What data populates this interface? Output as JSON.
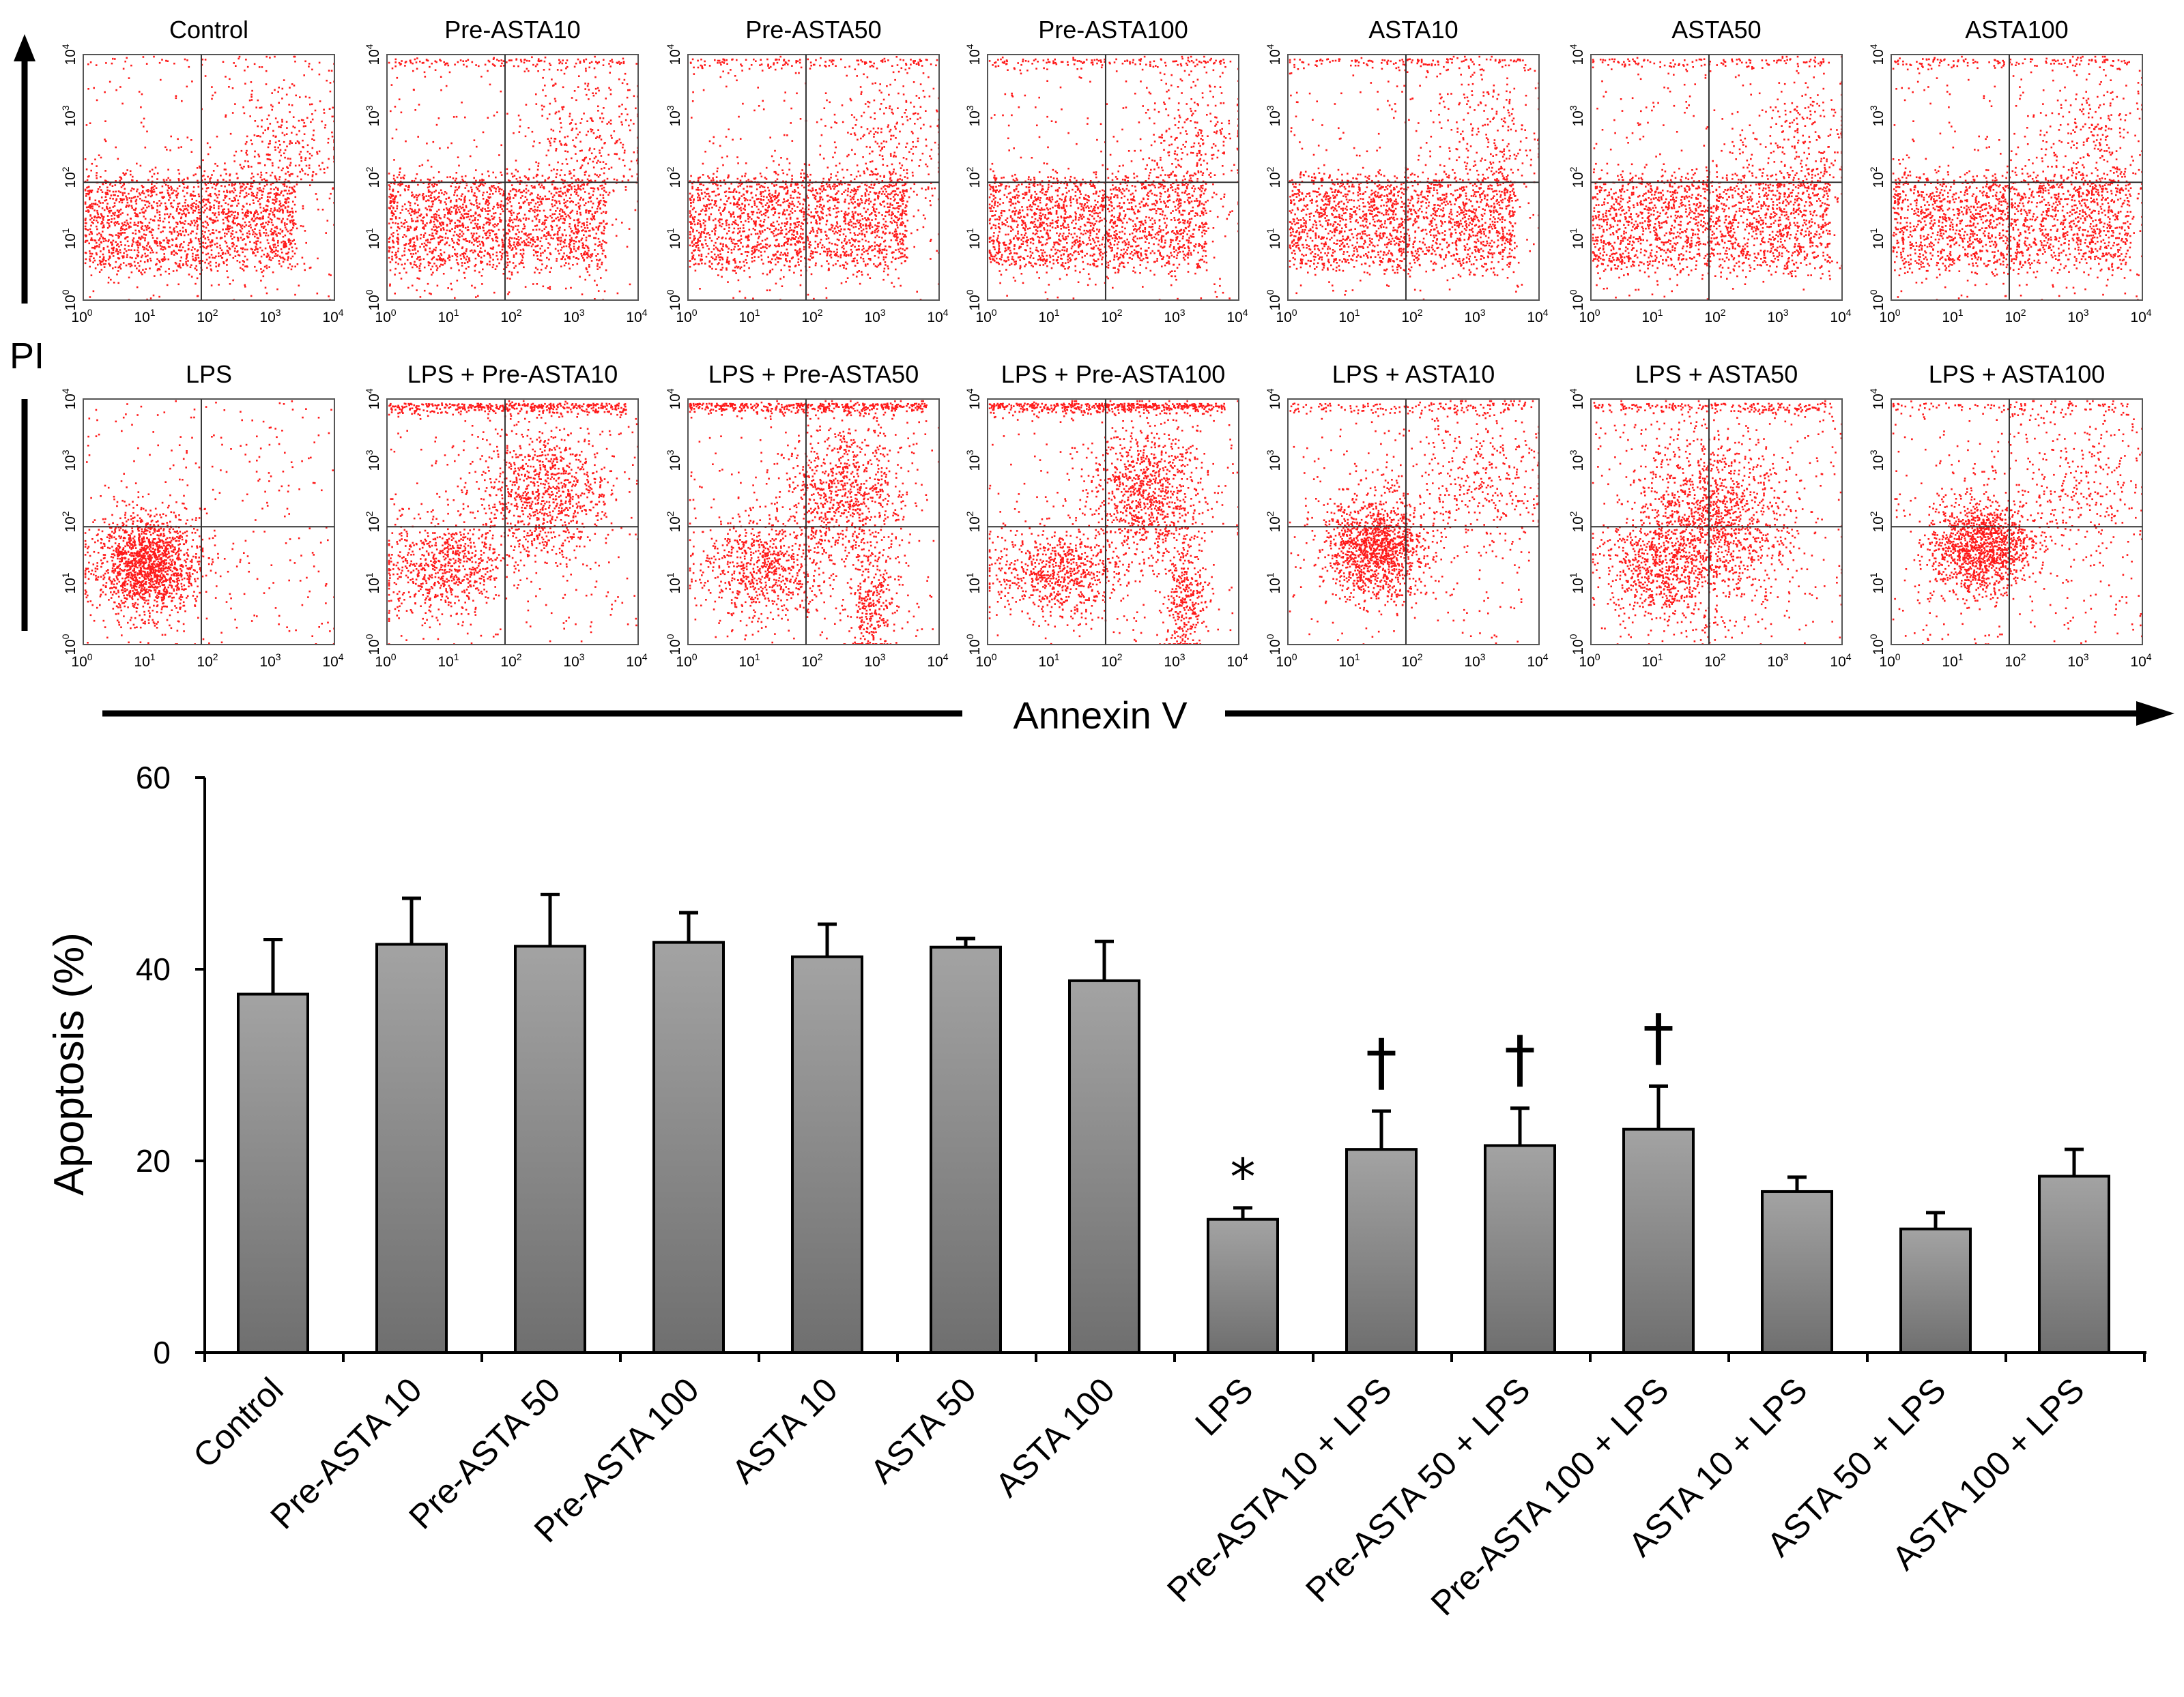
{
  "flow_panels": {
    "x_axis_label": "Annexin V",
    "y_axis_label": "PI",
    "tick_base": "10",
    "tick_exponents": [
      "0",
      "1",
      "2",
      "3",
      "4"
    ],
    "dot_color": "#ff1a1a",
    "row1": [
      "Control",
      "Pre-ASTA10",
      "Pre-ASTA50",
      "Pre-ASTA100",
      "ASTA10",
      "ASTA50",
      "ASTA100"
    ],
    "row2": [
      "LPS",
      "LPS + Pre-ASTA10",
      "LPS + Pre-ASTA50",
      "LPS + Pre-ASTA100",
      "LPS + ASTA10",
      "LPS + ASTA50",
      "LPS + ASTA100"
    ]
  },
  "chart_data": {
    "type": "bar",
    "title": "",
    "xlabel": "",
    "ylabel": "Apoptosis (%)",
    "ylim": [
      0,
      60
    ],
    "yticks": [
      "0",
      "20",
      "40",
      "60"
    ],
    "categories": [
      "Control",
      "Pre-ASTA 10",
      "Pre-ASTA 50",
      "Pre-ASTA 100",
      "ASTA 10",
      "ASTA 50",
      "ASTA 100",
      "LPS",
      "Pre-ASTA 10 + LPS",
      "Pre-ASTA 50 + LPS",
      "Pre-ASTA 100 + LPS",
      "ASTA 10 + LPS",
      "ASTA 50 + LPS",
      "ASTA 100 + LPS"
    ],
    "values": [
      37.4,
      42.6,
      42.4,
      42.8,
      41.3,
      42.3,
      38.8,
      13.9,
      21.2,
      21.6,
      23.3,
      16.8,
      12.9,
      18.4
    ],
    "errors": [
      5.7,
      4.8,
      5.4,
      3.1,
      3.4,
      0.9,
      4.1,
      1.2,
      4.0,
      3.9,
      4.5,
      1.5,
      1.7,
      2.8
    ],
    "annotations": [
      "",
      "",
      "",
      "",
      "",
      "",
      "",
      "*",
      "†",
      "†",
      "†",
      "",
      "",
      ""
    ],
    "bar_color": "#8c8c8c"
  }
}
